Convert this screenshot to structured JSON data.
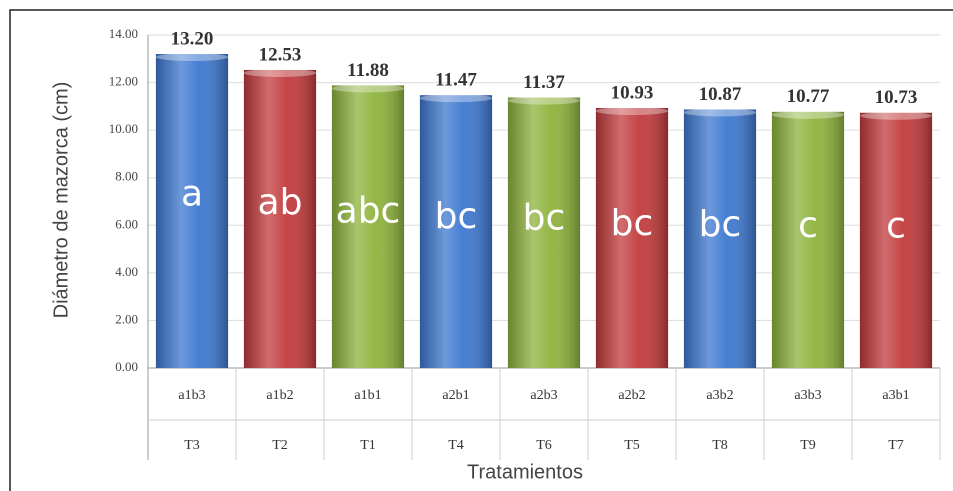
{
  "chart_data": {
    "type": "bar",
    "y_label": "Diámetro de mazorca (cm)",
    "x_label": "Tratamientos",
    "categories": [
      "a1b3",
      "a1b2",
      "a1b1",
      "a2b1",
      "a2b3",
      "a2b2",
      "a3b2",
      "a3b3",
      "a3b1"
    ],
    "treatments": [
      "T3",
      "T2",
      "T1",
      "T4",
      "T6",
      "T5",
      "T8",
      "T9",
      "T7"
    ],
    "values": [
      13.2,
      12.53,
      11.88,
      11.47,
      11.37,
      10.93,
      10.87,
      10.77,
      10.73
    ],
    "value_labels": [
      "13.20",
      "12.53",
      "11.88",
      "11.47",
      "11.37",
      "10.93",
      "10.87",
      "10.77",
      "10.73"
    ],
    "annotations": [
      "a",
      "ab",
      "abc",
      "bc",
      "bc",
      "bc",
      "bc",
      "c",
      "c"
    ],
    "colors": [
      "#3d78d0",
      "#c23a3c",
      "#8db33b",
      "#3d78d0",
      "#8db33b",
      "#c23a3c",
      "#3d78d0",
      "#8db33b",
      "#c23a3c"
    ],
    "ylim": [
      0,
      14
    ],
    "yticks": [
      {
        "value": 0,
        "label": "0.00"
      },
      {
        "value": 2,
        "label": "2.00"
      },
      {
        "value": 4,
        "label": "4.00"
      },
      {
        "value": 6,
        "label": "6.00"
      },
      {
        "value": 8,
        "label": "8.00"
      },
      {
        "value": 10,
        "label": "10.00"
      },
      {
        "value": 12,
        "label": "12.00"
      },
      {
        "value": 14,
        "label": "14.00"
      }
    ],
    "grid": true
  }
}
